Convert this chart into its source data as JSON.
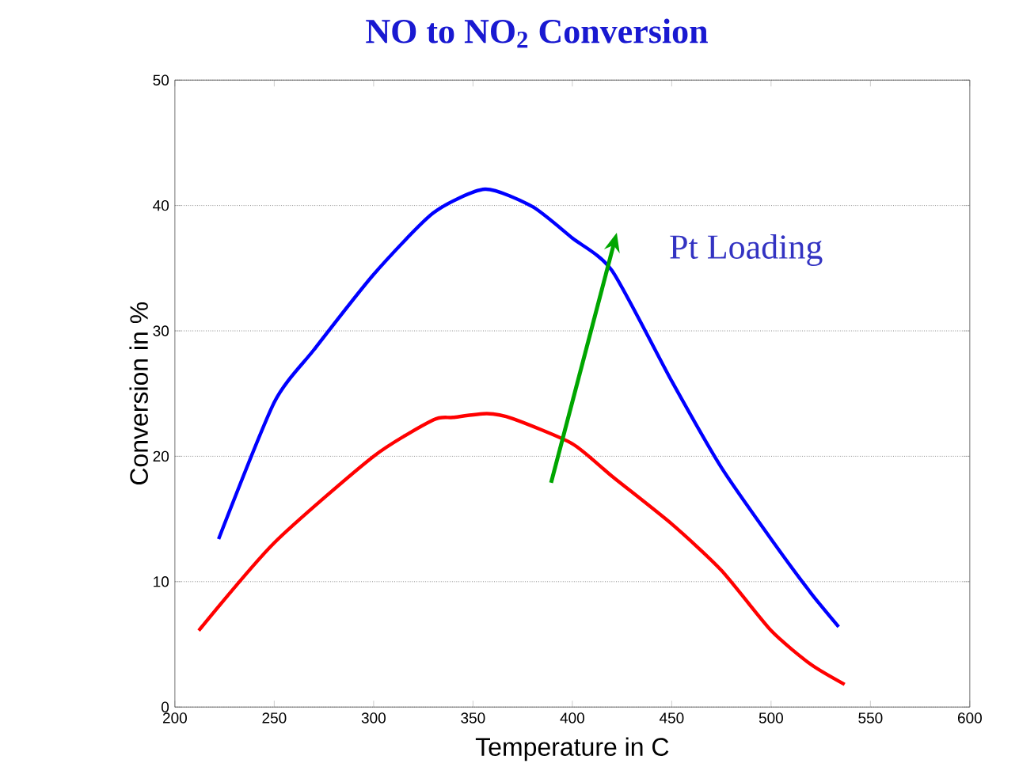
{
  "chart_data": {
    "type": "line",
    "title": "NO to NO$_{2}$ Conversion",
    "xlabel": "Temperature in C",
    "ylabel": "Conversion in %",
    "xlim": [
      200,
      600
    ],
    "ylim": [
      0,
      50
    ],
    "xticks": [
      200,
      250,
      300,
      350,
      400,
      450,
      500,
      550,
      600
    ],
    "yticks": [
      0,
      10,
      20,
      30,
      40,
      50
    ],
    "grid": "y",
    "marker": "none",
    "line_style": "solid",
    "annotations": [
      "Pt Loading"
    ],
    "series": [
      {
        "color": "#0000ff",
        "x": [
          222,
          250,
          270,
          300,
          330,
          356,
          380,
          400,
          420,
          450,
          475,
          500,
          520,
          534
        ],
        "values": [
          13.4,
          24.3,
          28.5,
          34.5,
          39.4,
          41.3,
          39.9,
          37.4,
          34.8,
          26.0,
          19.1,
          13.4,
          9.1,
          6.4
        ]
      },
      {
        "color": "#ff0000",
        "x": [
          212,
          250,
          300,
          330,
          340,
          357,
          370,
          400,
          420,
          450,
          475,
          500,
          520,
          537
        ],
        "values": [
          6.1,
          13.1,
          20.0,
          22.9,
          23.1,
          23.4,
          23.0,
          21.0,
          18.4,
          14.6,
          10.9,
          6.1,
          3.4,
          1.8
        ]
      }
    ]
  }
}
